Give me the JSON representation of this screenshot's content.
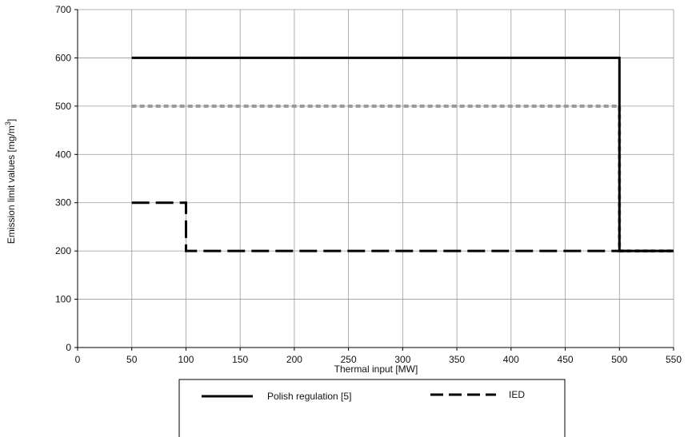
{
  "chart_data": {
    "type": "line",
    "xlabel": "Thermal input [MW]",
    "ylabel": "Emission limit values [mg/m3]",
    "xlim": [
      0,
      550
    ],
    "ylim": [
      0,
      700
    ],
    "xticks": [
      0,
      50,
      100,
      150,
      200,
      250,
      300,
      350,
      400,
      450,
      500,
      550
    ],
    "yticks": [
      0,
      100,
      200,
      300,
      400,
      500,
      600,
      700
    ],
    "grid": true,
    "legend_position": "bottom",
    "series": [
      {
        "name": "Polish regulation [5]",
        "style": "solid",
        "color": "#000000",
        "points": [
          [
            50,
            600
          ],
          [
            500,
            600
          ],
          [
            500,
            200
          ],
          [
            550,
            200
          ]
        ]
      },
      {
        "name": "IED",
        "style": "dashed",
        "color": "#000000",
        "points": [
          [
            50,
            300
          ],
          [
            100,
            300
          ],
          [
            100,
            200
          ],
          [
            550,
            200
          ]
        ]
      },
      {
        "style": "dotted",
        "color": "#999999",
        "points": [
          [
            50,
            500
          ],
          [
            500,
            500
          ],
          [
            500,
            200
          ],
          [
            550,
            200
          ]
        ]
      }
    ]
  }
}
